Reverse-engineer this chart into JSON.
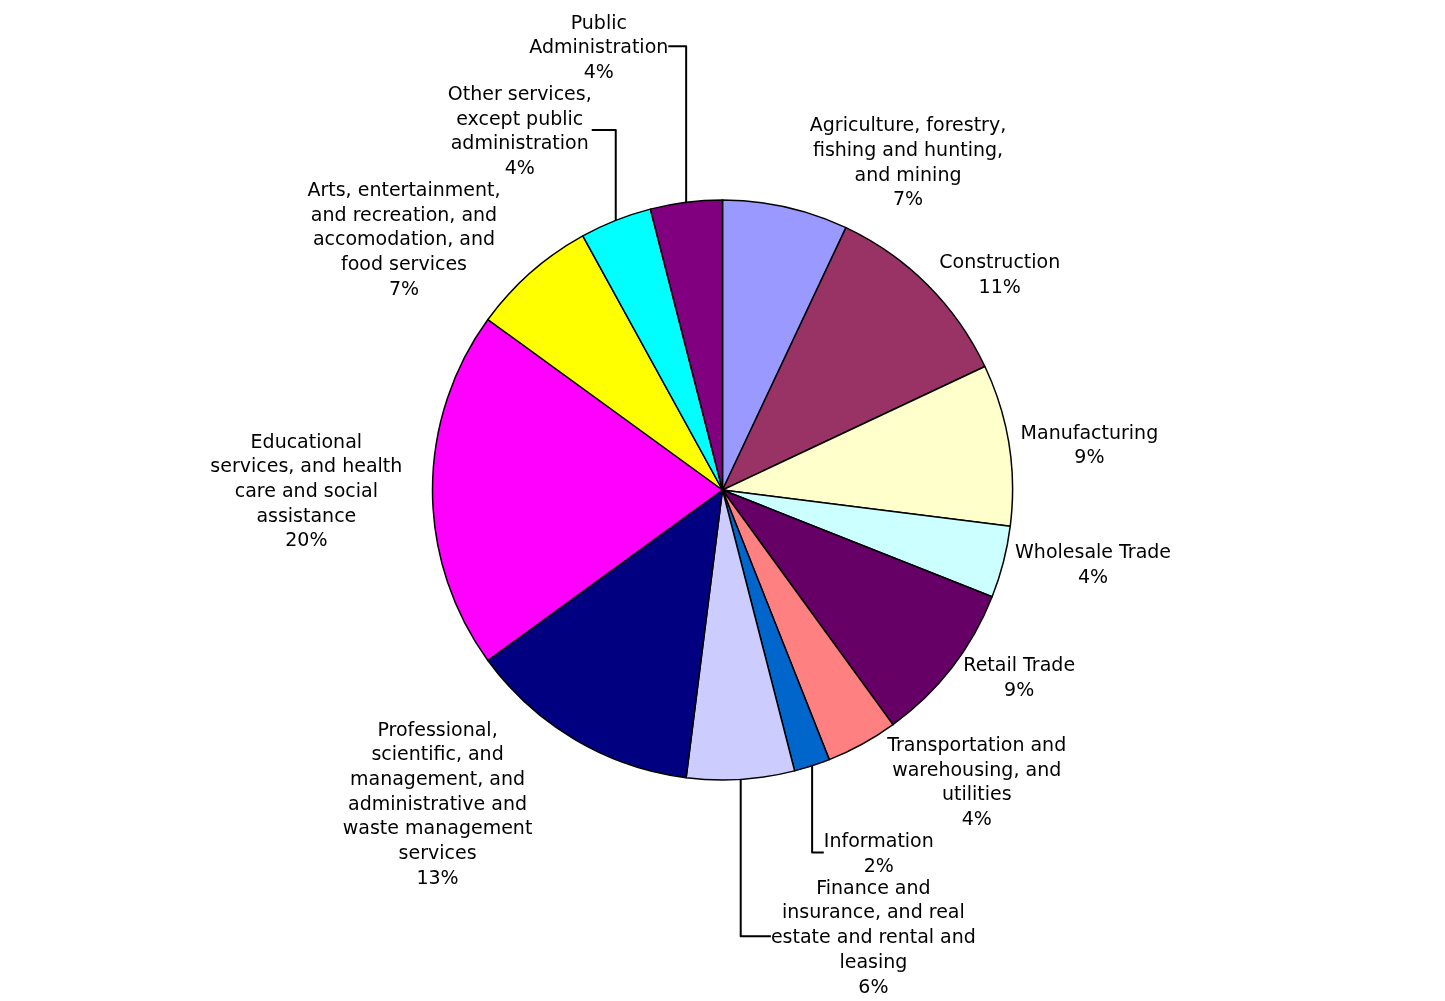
{
  "chart_data": {
    "type": "pie",
    "categories": [
      "Agriculture, forestry,\nfishing and hunting,\nand mining",
      "Construction",
      "Manufacturing",
      "Wholesale Trade",
      "Retail Trade",
      "Transportation and\nwarehousing, and\nutilities",
      "Information",
      "Finance and\ninsurance, and real\nestate and rental and\nleasing",
      "Professional,\nscientific, and\nmanagement, and\nadministrative and\nwaste management\nservices",
      "Educational\nservices, and health\ncare and social\nassistance",
      "Arts, entertainment,\nand recreation, and\naccomodation, and\nfood services",
      "Other services,\nexcept public\nadministration",
      "Public\nAdministration"
    ],
    "values": [
      7,
      11,
      9,
      4,
      9,
      4,
      2,
      6,
      13,
      20,
      7,
      4,
      4
    ],
    "value_labels": [
      "7%",
      "11%",
      "9%",
      "4%",
      "9%",
      "4%",
      "2%",
      "6%",
      "13%",
      "20%",
      "7%",
      "4%",
      "4%"
    ],
    "colors": [
      "#9999ff",
      "#993366",
      "#ffffcc",
      "#ccffff",
      "#660066",
      "#ff8080",
      "#0066cc",
      "#ccccff",
      "#000080",
      "#ff00ff",
      "#ffff00",
      "#00ffff",
      "#800080"
    ],
    "legend": false
  }
}
